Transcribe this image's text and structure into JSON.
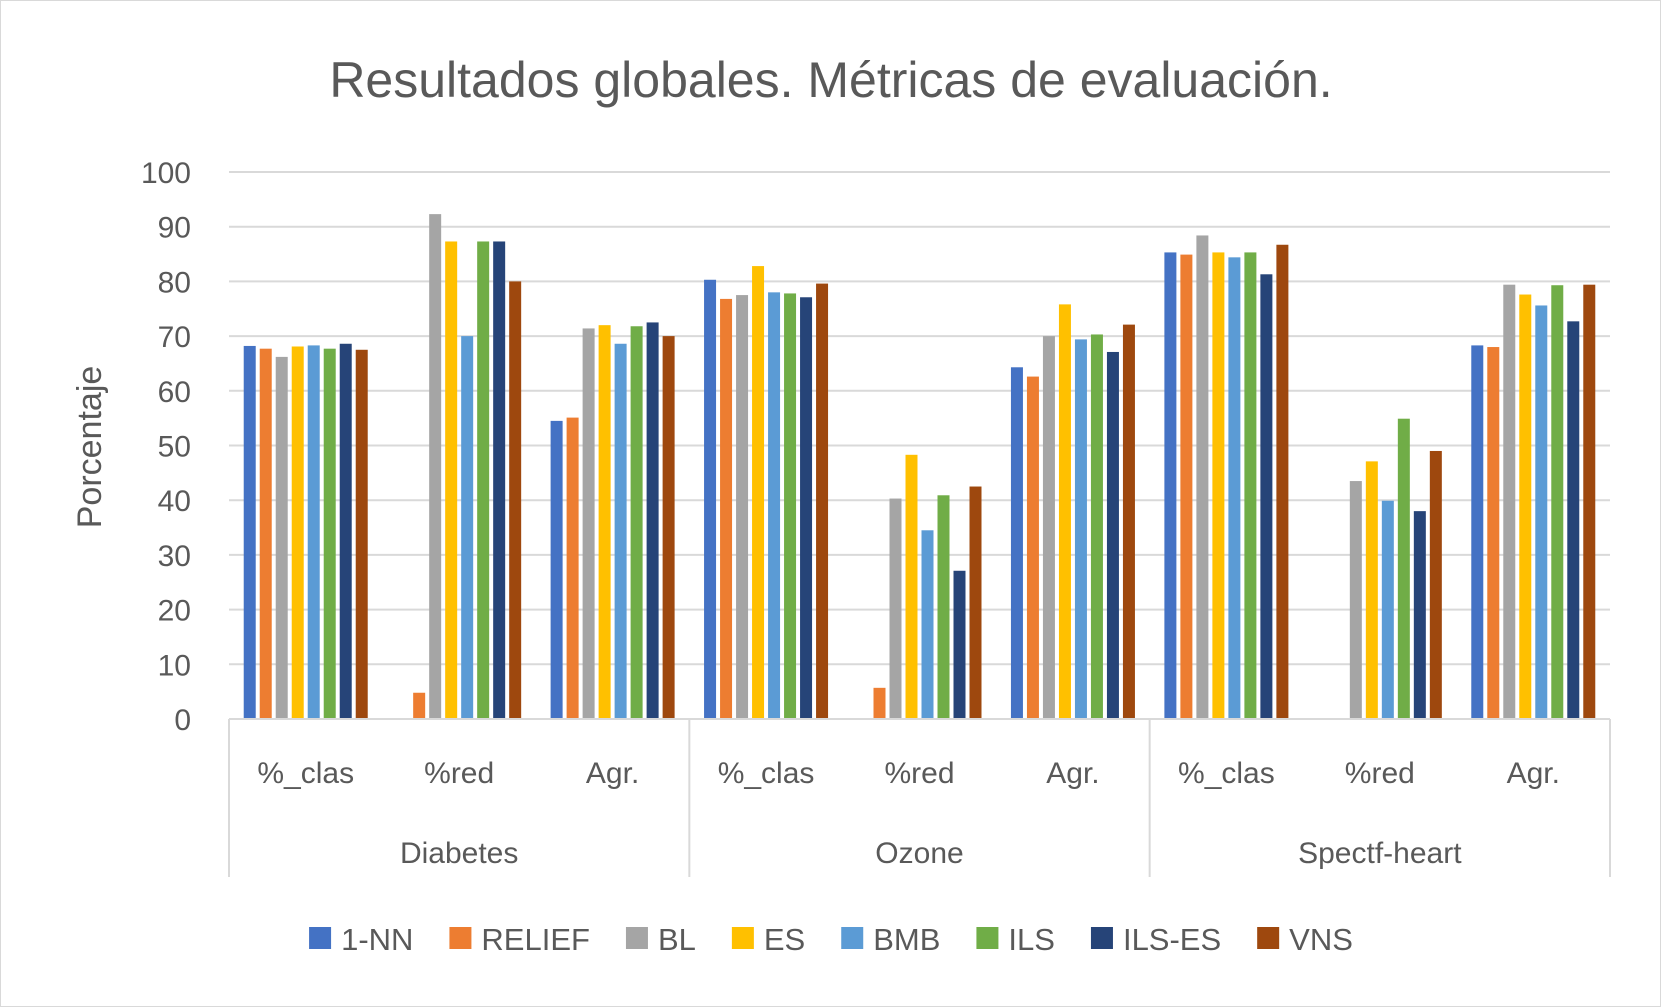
{
  "chart_data": {
    "type": "bar",
    "title": "Resultados globales. Métricas de evaluación.",
    "xlabel": "",
    "ylabel": "Porcentaje",
    "ylim": [
      0,
      100
    ],
    "yticks": [
      "0",
      "10",
      "20",
      "30",
      "40",
      "50",
      "60",
      "70",
      "80",
      "90",
      "100"
    ],
    "grid": true,
    "legend_position": "bottom",
    "groups": [
      {
        "label": "Diabetes",
        "categories": [
          "%_clas",
          "%red",
          "Agr."
        ]
      },
      {
        "label": "Ozone",
        "categories": [
          "%_clas",
          "%red",
          "Agr."
        ]
      },
      {
        "label": "Spectf-heart",
        "categories": [
          "%_clas",
          "%red",
          "Agr."
        ]
      }
    ],
    "categories": [
      "%_clas",
      "%red",
      "Agr.",
      "%_clas",
      "%red",
      "Agr.",
      "%_clas",
      "%red",
      "Agr."
    ],
    "series": [
      {
        "name": "1-NN",
        "color": "#4472C4",
        "values": [
          68.2,
          0,
          54.5,
          80.3,
          0,
          64.3,
          85.3,
          0,
          68.3
        ]
      },
      {
        "name": "RELIEF",
        "color": "#ED7D31",
        "values": [
          67.7,
          4.8,
          55.1,
          76.8,
          5.7,
          62.6,
          84.9,
          0,
          68.0
        ]
      },
      {
        "name": "BL",
        "color": "#A5A5A5",
        "values": [
          66.2,
          92.3,
          71.4,
          77.5,
          40.3,
          70.0,
          88.4,
          43.5,
          79.4
        ]
      },
      {
        "name": "ES",
        "color": "#FFC000",
        "values": [
          68.1,
          87.3,
          72.0,
          82.8,
          48.3,
          75.8,
          85.3,
          47.1,
          77.6
        ]
      },
      {
        "name": "BMB",
        "color": "#5B9BD5",
        "values": [
          68.3,
          70.0,
          68.6,
          78.0,
          34.5,
          69.4,
          84.4,
          39.9,
          75.6
        ]
      },
      {
        "name": "ILS",
        "color": "#70AD47",
        "values": [
          67.7,
          87.3,
          71.8,
          77.8,
          40.9,
          70.3,
          85.3,
          54.9,
          79.3
        ]
      },
      {
        "name": "ILS-ES",
        "color": "#264478",
        "values": [
          68.6,
          87.3,
          72.5,
          77.1,
          27.1,
          67.1,
          81.3,
          38.0,
          72.7
        ]
      },
      {
        "name": "VNS",
        "color": "#9E480E",
        "values": [
          67.5,
          80.0,
          70.0,
          79.6,
          42.5,
          72.1,
          86.7,
          49.0,
          79.4
        ]
      }
    ]
  }
}
